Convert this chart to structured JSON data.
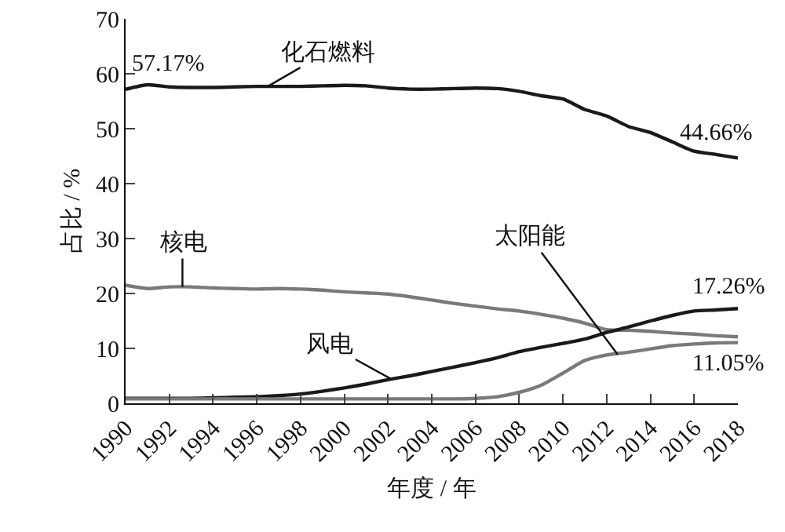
{
  "chart_data": {
    "type": "line",
    "xlabel": "年度 / 年",
    "ylabel": "占比 / %",
    "x": [
      1990,
      1991,
      1992,
      1993,
      1994,
      1995,
      1996,
      1997,
      1998,
      1999,
      2000,
      2001,
      2002,
      2003,
      2004,
      2005,
      2006,
      2007,
      2008,
      2009,
      2010,
      2011,
      2012,
      2013,
      2014,
      2015,
      2016,
      2017,
      2018
    ],
    "series": [
      {
        "color": "#1a1a1a",
        "values": [
          57.17,
          58.0,
          57.6,
          57.5,
          57.5,
          57.6,
          57.7,
          57.7,
          57.7,
          57.8,
          57.9,
          57.8,
          57.4,
          57.2,
          57.2,
          57.3,
          57.4,
          57.3,
          56.8,
          56.0,
          55.4,
          53.5,
          52.3,
          50.4,
          49.3,
          47.6,
          45.9,
          45.3,
          44.66
        ],
        "value_labels": [
          "57.17%",
          null,
          null,
          null,
          null,
          null,
          null,
          null,
          null,
          null,
          null,
          null,
          null,
          null,
          null,
          null,
          null,
          null,
          null,
          null,
          null,
          null,
          null,
          null,
          null,
          null,
          null,
          null,
          "44.66%"
        ]
      },
      {
        "color": "#7a7a7a",
        "values": [
          21.5,
          20.9,
          21.2,
          21.2,
          21.0,
          20.9,
          20.8,
          20.9,
          20.8,
          20.6,
          20.3,
          20.1,
          19.9,
          19.4,
          18.8,
          18.2,
          17.7,
          17.2,
          16.8,
          16.2,
          15.5,
          14.6,
          13.4,
          13.3,
          13.1,
          12.8,
          12.6,
          12.3,
          12.1
        ]
      },
      {
        "color": "#1a1a1a",
        "values": [
          0.9,
          0.9,
          0.9,
          0.9,
          1.0,
          1.1,
          1.2,
          1.4,
          1.7,
          2.2,
          2.8,
          3.5,
          4.3,
          5.0,
          5.8,
          6.6,
          7.4,
          8.3,
          9.4,
          10.2,
          10.9,
          11.7,
          12.9,
          13.9,
          15.0,
          16.0,
          16.8,
          17.0,
          17.26
        ],
        "value_labels": [
          null,
          null,
          null,
          null,
          null,
          null,
          null,
          null,
          null,
          null,
          null,
          null,
          null,
          null,
          null,
          null,
          null,
          null,
          null,
          null,
          null,
          null,
          null,
          null,
          null,
          null,
          null,
          null,
          "17.26%"
        ]
      },
      {
        "color": "#7a7a7a",
        "values": [
          0.8,
          0.8,
          0.8,
          0.8,
          0.8,
          0.8,
          0.8,
          0.8,
          0.8,
          0.8,
          0.8,
          0.8,
          0.8,
          0.8,
          0.8,
          0.8,
          0.9,
          1.2,
          2.0,
          3.3,
          5.5,
          7.8,
          8.8,
          9.3,
          9.9,
          10.5,
          10.8,
          11.0,
          11.05
        ],
        "value_labels": [
          null,
          null,
          null,
          null,
          null,
          null,
          null,
          null,
          null,
          null,
          null,
          null,
          null,
          null,
          null,
          null,
          null,
          null,
          null,
          null,
          null,
          null,
          null,
          null,
          null,
          null,
          null,
          null,
          "11.05%"
        ]
      }
    ],
    "annotations": [
      {
        "text": "化石燃料",
        "x": 1996.5,
        "y": 57.7
      },
      {
        "text": "核电",
        "x": 1992.6,
        "y": 21.2
      },
      {
        "text": "风电",
        "x": 2002.2,
        "y": 4.3
      },
      {
        "text": "太阳能",
        "x": 2012.5,
        "y": 8.9
      }
    ],
    "xlim": [
      1990,
      2018
    ],
    "xticks": [
      1990,
      1992,
      1994,
      1996,
      1998,
      2000,
      2002,
      2004,
      2006,
      2008,
      2010,
      2012,
      2014,
      2016,
      2018
    ],
    "ylim": [
      0,
      70
    ],
    "yticks": [
      0,
      10,
      20,
      30,
      40,
      50,
      60,
      70
    ],
    "grid": false,
    "marker": "none",
    "line_style": "solid"
  }
}
